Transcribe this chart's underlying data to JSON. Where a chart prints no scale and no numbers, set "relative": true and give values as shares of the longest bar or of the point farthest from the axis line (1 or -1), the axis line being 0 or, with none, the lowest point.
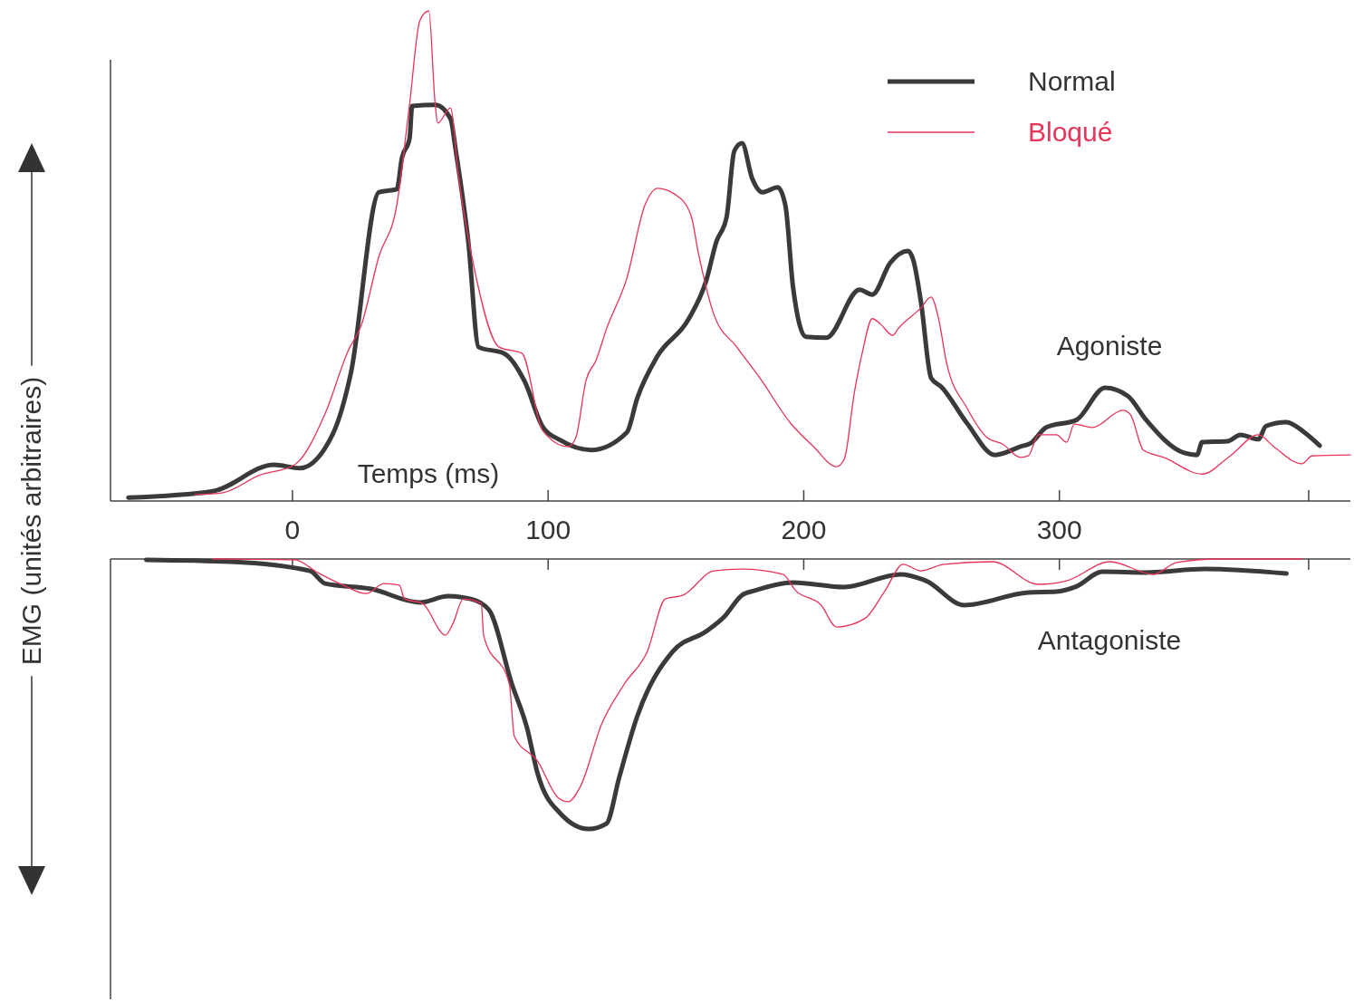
{
  "chart_data": [
    {
      "type": "line",
      "relative": true,
      "xlabel": "Temps (ms)",
      "ylabel": "EMG (unités arbitraires)",
      "xlim": [
        -71,
        414
      ],
      "xticks": [
        0,
        100,
        200,
        300,
        {
          "value": 397.5,
          "label": null
        }
      ],
      "legend": "top right",
      "annotations": [
        "Agoniste"
      ],
      "series": [
        {
          "name": "Normal",
          "color": "#3a3a3a",
          "x": [
            -64,
            -31,
            -7,
            3,
            16,
            23,
            34,
            41,
            43,
            46,
            47,
            56,
            62,
            64,
            69,
            73,
            83,
            91,
            98,
            105,
            117,
            131,
            135,
            143,
            155,
            162,
            166,
            170,
            173,
            176,
            180,
            184,
            190,
            193,
            196,
            201,
            209,
            222,
            227,
            234,
            241,
            243,
            246,
            250,
            254,
            264,
            275,
            285,
            289,
            295,
            307,
            318,
            327,
            334,
            349,
            354,
            356,
            366,
            371,
            378,
            381,
            389,
            396,
            402
          ],
          "values": [
            0.007,
            0.02,
            0.074,
            0.067,
            0.137,
            0.26,
            0.63,
            0.636,
            0.7,
            0.74,
            0.806,
            0.808,
            0.78,
            0.717,
            0.527,
            0.314,
            0.301,
            0.244,
            0.152,
            0.124,
            0.104,
            0.14,
            0.209,
            0.296,
            0.37,
            0.449,
            0.529,
            0.579,
            0.714,
            0.73,
            0.658,
            0.63,
            0.64,
            0.603,
            0.436,
            0.335,
            0.333,
            0.431,
            0.421,
            0.486,
            0.51,
            0.492,
            0.407,
            0.251,
            0.233,
            0.159,
            0.094,
            0.111,
            0.118,
            0.15,
            0.166,
            0.231,
            0.214,
            0.166,
            0.098,
            0.094,
            0.12,
            0.122,
            0.135,
            0.126,
            0.153,
            0.161,
            0.14,
            0.113
          ]
        },
        {
          "name": "Bloqué",
          "color": "#e8335a",
          "x": [
            -38,
            -27,
            -13,
            1,
            13,
            22,
            27,
            34,
            41,
            46,
            50,
            53.5,
            56,
            57,
            62,
            65,
            72,
            81,
            90,
            98,
            108,
            111,
            115,
            119,
            123,
            131,
            138,
            143,
            150,
            156,
            159,
            165,
            174,
            183,
            195,
            204,
            213,
            216,
            220,
            223,
            227,
            230,
            235,
            237,
            246,
            250,
            253,
            256,
            264,
            272,
            278,
            285,
            288,
            292,
            299,
            303,
            306,
            313,
            325,
            328,
            333,
            341,
            356,
            367,
            378,
            384,
            395,
            399,
            414
          ],
          "values": [
            0.013,
            0.017,
            0.052,
            0.074,
            0.179,
            0.307,
            0.357,
            0.499,
            0.604,
            0.81,
            0.98,
            1.0,
            0.81,
            0.771,
            0.802,
            0.669,
            0.457,
            0.314,
            0.301,
            0.144,
            0.111,
            0.129,
            0.246,
            0.288,
            0.351,
            0.455,
            0.603,
            0.638,
            0.625,
            0.584,
            0.505,
            0.381,
            0.314,
            0.251,
            0.159,
            0.111,
            0.07,
            0.085,
            0.222,
            0.301,
            0.372,
            0.362,
            0.338,
            0.351,
            0.394,
            0.416,
            0.37,
            0.283,
            0.19,
            0.129,
            0.116,
            0.089,
            0.092,
            0.135,
            0.135,
            0.12,
            0.157,
            0.15,
            0.185,
            0.176,
            0.104,
            0.089,
            0.055,
            0.092,
            0.135,
            0.111,
            0.076,
            0.092,
            0.094
          ]
        }
      ]
    },
    {
      "type": "line",
      "relative": true,
      "xlim": [
        -71,
        414
      ],
      "xticks": [
        0,
        100,
        200,
        300,
        {
          "value": 397.5,
          "label": null
        }
      ],
      "tick_labels": false,
      "annotations": [
        "Antagoniste"
      ],
      "series": [
        {
          "color": "#3a3a3a",
          "x": [
            -57,
            -24,
            7,
            13,
            31,
            50,
            61,
            70,
            77,
            86,
            92,
            96,
            105,
            116,
            123,
            128,
            135,
            149,
            162,
            169,
            176,
            181,
            196,
            216,
            238,
            248,
            263,
            288,
            299,
            307,
            317,
            334,
            357,
            389
          ],
          "values": [
            -0.003,
            -0.01,
            -0.044,
            -0.091,
            -0.111,
            -0.161,
            -0.138,
            -0.148,
            -0.188,
            -0.463,
            -0.628,
            -0.792,
            -0.943,
            -1.0,
            -0.98,
            -0.809,
            -0.584,
            -0.342,
            -0.268,
            -0.215,
            -0.134,
            -0.117,
            -0.087,
            -0.104,
            -0.057,
            -0.081,
            -0.171,
            -0.124,
            -0.121,
            -0.101,
            -0.047,
            -0.05,
            -0.037,
            -0.054
          ]
        },
        {
          "color": "#e8335a",
          "x": [
            -31,
            1,
            10,
            20,
            29,
            36,
            42,
            44,
            51,
            60,
            63,
            67,
            74,
            75,
            85,
            87,
            96,
            104,
            108,
            113,
            121,
            130,
            139,
            146,
            153,
            165,
            176,
            192,
            197,
            207,
            213,
            224,
            232,
            239,
            246,
            255,
            274,
            292,
            303,
            320,
            337,
            346,
            362,
            389,
            395
          ],
          "values": [
            0,
            -0.003,
            -0.05,
            -0.097,
            -0.128,
            -0.091,
            -0.097,
            -0.148,
            -0.164,
            -0.282,
            -0.238,
            -0.148,
            -0.164,
            -0.285,
            -0.463,
            -0.658,
            -0.748,
            -0.883,
            -0.899,
            -0.839,
            -0.614,
            -0.463,
            -0.342,
            -0.148,
            -0.134,
            -0.044,
            -0.037,
            -0.057,
            -0.117,
            -0.171,
            -0.252,
            -0.221,
            -0.117,
            -0.02,
            -0.044,
            -0.02,
            -0.01,
            -0.094,
            -0.081,
            -0.01,
            -0.057,
            -0.013,
            0,
            0,
            0
          ]
        }
      ]
    }
  ]
}
